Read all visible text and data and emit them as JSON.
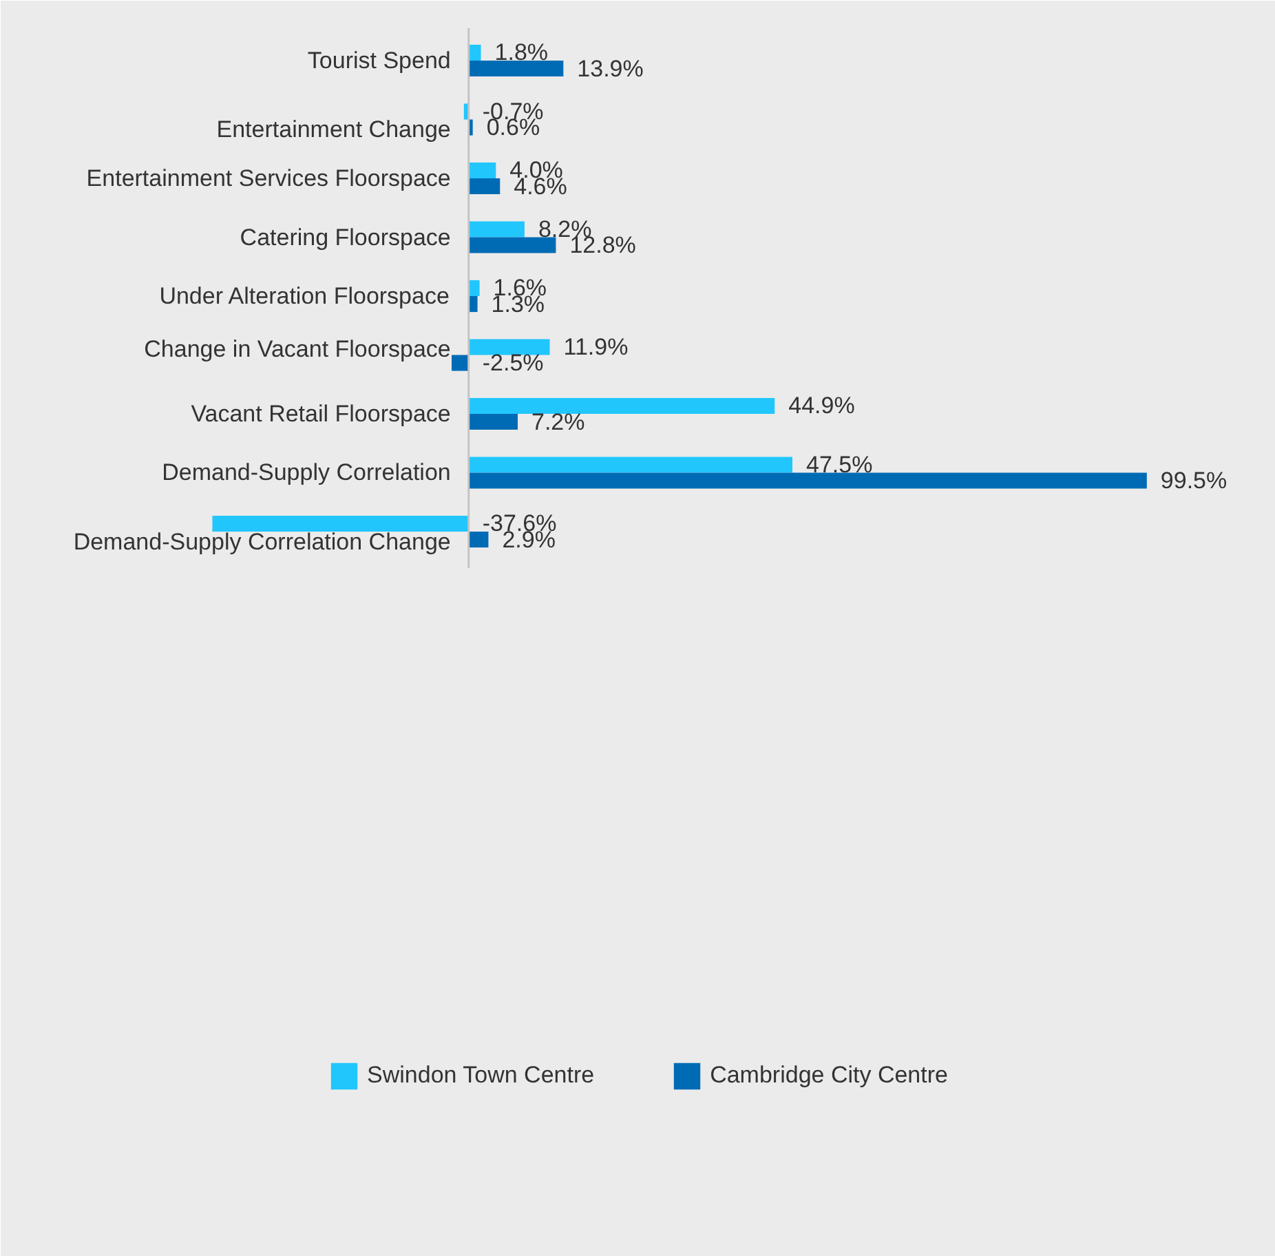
{
  "chart_data": {
    "type": "bar",
    "orientation": "horizontal",
    "legend": "bottom",
    "categories": [
      "Tourist Spend",
      "Entertainment Change",
      "Entertainment Services Floorspace",
      "Catering Floorspace",
      "Under Alteration Floorspace",
      "Change in Vacant Floorspace",
      "Vacant Retail Floorspace",
      "Demand-Supply Correlation",
      "Demand-Supply Correlation Change"
    ],
    "series": [
      {
        "name": "Swindon Town Centre",
        "color": "#21c6fd",
        "values": [
          1.8,
          -0.7,
          4.0,
          8.2,
          1.6,
          11.9,
          44.9,
          47.5,
          -37.6
        ],
        "value_labels": [
          "1.8%",
          "-0.7%",
          "4.0%",
          "8.2%",
          "1.6%",
          "11.9%",
          "44.9%",
          "47.5%",
          "-37.6%"
        ]
      },
      {
        "name": "Cambridge City Centre",
        "color": "#006bb5",
        "values": [
          13.9,
          0.6,
          4.6,
          12.8,
          1.3,
          -2.5,
          7.2,
          99.5,
          2.9
        ],
        "value_labels": [
          "13.9%",
          "0.6%",
          "4.6%",
          "12.8%",
          "1.3%",
          "-2.5%",
          "7.2%",
          "99.5%",
          "2.9%"
        ]
      }
    ]
  }
}
